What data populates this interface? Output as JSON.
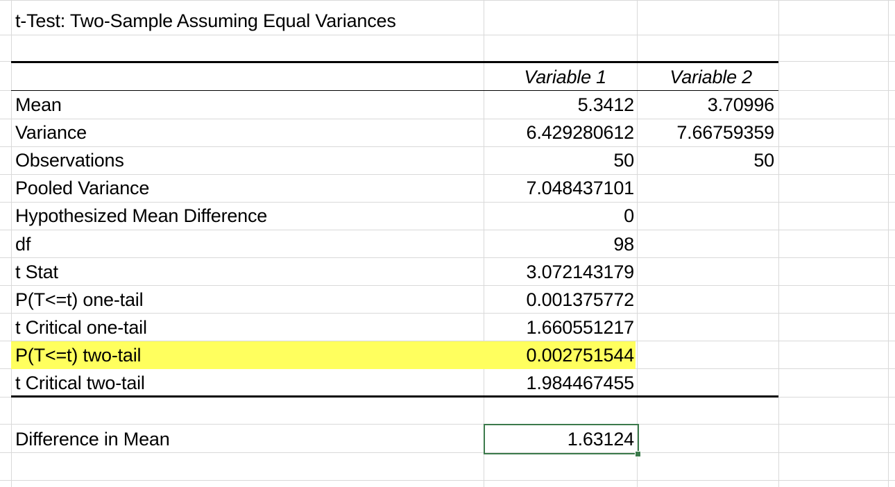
{
  "title": "t-Test: Two-Sample Assuming Equal Variances",
  "headers": {
    "var1": "Variable 1",
    "var2": "Variable 2"
  },
  "rows": [
    {
      "label": "Mean",
      "v1": "5.3412",
      "v2": "3.70996"
    },
    {
      "label": "Variance",
      "v1": "6.429280612",
      "v2": "7.66759359"
    },
    {
      "label": "Observations",
      "v1": "50",
      "v2": "50"
    },
    {
      "label": "Pooled Variance",
      "v1": "7.048437101",
      "v2": ""
    },
    {
      "label": "Hypothesized Mean Difference",
      "v1": "0",
      "v2": ""
    },
    {
      "label": "df",
      "v1": "98",
      "v2": ""
    },
    {
      "label": "t Stat",
      "v1": "3.072143179",
      "v2": ""
    },
    {
      "label": "P(T<=t) one-tail",
      "v1": "0.001375772",
      "v2": ""
    },
    {
      "label": "t Critical one-tail",
      "v1": "1.660551217",
      "v2": ""
    },
    {
      "label": "P(T<=t) two-tail",
      "v1": "0.002751544",
      "v2": ""
    },
    {
      "label": "t Critical two-tail",
      "v1": "1.984467455",
      "v2": ""
    }
  ],
  "difference": {
    "label": "Difference in Mean",
    "value": "1.63124"
  },
  "colors": {
    "highlight": "#ffff5e",
    "active_cell_border": "#3b7a4b",
    "gridline": "#d9d9d9"
  }
}
